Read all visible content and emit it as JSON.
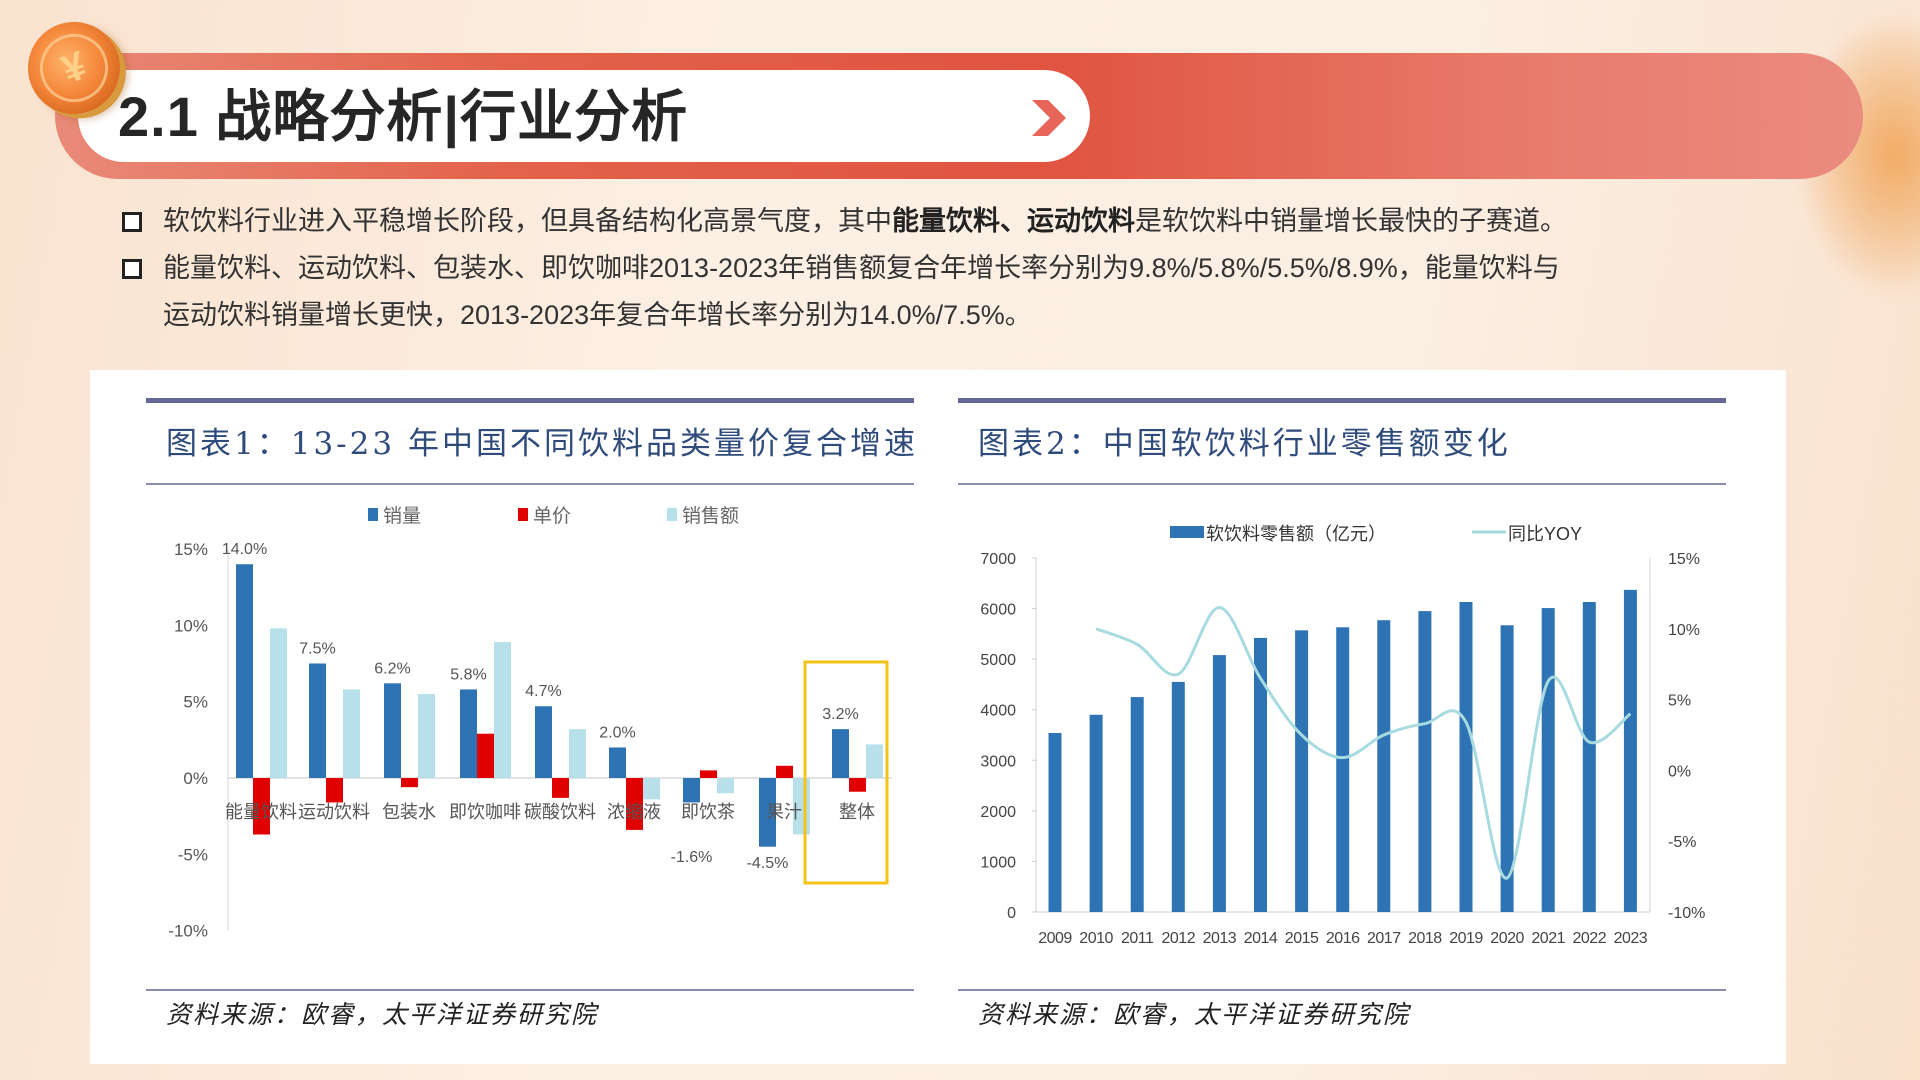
{
  "header": {
    "title": "2.1 战略分析|行业分析",
    "coin_glyph": "¥",
    "chevron": "chevron-right"
  },
  "bullets": [
    {
      "parts": [
        {
          "text": "软饮料行业进入平稳增长阶段，但具备结构化高景气度，其中",
          "bold": false
        },
        {
          "text": "能量饮料、运动饮料",
          "bold": true
        },
        {
          "text": "是软饮料中销量增长最快的子赛道。",
          "bold": false
        }
      ]
    },
    {
      "line1": "能量饮料、运动饮料、包装水、即饮咖啡2013-2023年销售额复合年增长率分别为9.8%/5.8%/5.5%/8.9%，能量饮料与",
      "line2": "运动饮料销量增长更快，2013-2023年复合年增长率分别为14.0%/7.5%。"
    }
  ],
  "charts": {
    "chart1": {
      "title": "图表1：13-23 年中国不同饮料品类量价复合增速",
      "source": "资料来源：欧睿，太平洋证券研究院"
    },
    "chart2": {
      "title": "图表2：中国软饮料行业零售额变化",
      "source": "资料来源：欧睿，太平洋证券研究院"
    }
  },
  "colors": {
    "volume": "#2e74b5",
    "price": "#e00000",
    "sales": "#b7e0ea",
    "retail_bar": "#2e74b5",
    "yoy_line": "#a8dbe0",
    "highlight_box": "#f5c21a",
    "title_blue": "#2f4b7c",
    "rule": "#646896"
  },
  "chart_data": [
    {
      "type": "bar",
      "title": "图表1：13-23 年中国不同饮料品类量价复合增速",
      "categories": [
        "能量饮料",
        "运动饮料",
        "包装水",
        "即饮咖啡",
        "碳酸饮料",
        "浓缩液",
        "即饮茶",
        "果汁",
        "整体"
      ],
      "series": [
        {
          "name": "销量",
          "values": [
            14.0,
            7.5,
            6.2,
            5.8,
            4.7,
            2.0,
            -1.6,
            -4.5,
            3.2
          ]
        },
        {
          "name": "单价",
          "values": [
            -3.7,
            -1.6,
            -0.6,
            2.9,
            -1.3,
            -3.4,
            0.5,
            0.8,
            -0.9
          ]
        },
        {
          "name": "销售额",
          "values": [
            9.8,
            5.8,
            5.5,
            8.9,
            3.2,
            -1.4,
            -1.0,
            -3.7,
            2.2
          ]
        }
      ],
      "data_labels": [
        "14.0%",
        "7.5%",
        "6.2%",
        "5.8%",
        "4.7%",
        "2.0%",
        "-1.6%",
        "-4.5%",
        "3.2%"
      ],
      "yticks": [
        "15%",
        "10%",
        "5%",
        "0%",
        "-5%",
        "-10%"
      ],
      "ylim": [
        -10,
        15
      ],
      "xlabel": "",
      "ylabel": "",
      "legend": [
        "销量",
        "单价",
        "销售额"
      ],
      "legend_position": "top",
      "annotations": [
        "整体 highlighted with yellow box"
      ],
      "grid": false
    },
    {
      "type": "bar",
      "title": "图表2：中国软饮料行业零售额变化",
      "categories": [
        "2009",
        "2010",
        "2011",
        "2012",
        "2013",
        "2014",
        "2015",
        "2016",
        "2017",
        "2018",
        "2019",
        "2020",
        "2021",
        "2022",
        "2023"
      ],
      "series": [
        {
          "name": "软饮料零售额（亿元）",
          "type": "bar",
          "axis": "left",
          "values": [
            3540,
            3900,
            4250,
            4550,
            5080,
            5420,
            5570,
            5630,
            5770,
            5950,
            6130,
            5670,
            6010,
            6130,
            6370
          ]
        },
        {
          "name": "同比YOY",
          "type": "line",
          "axis": "right",
          "values": [
            null,
            10.0,
            8.9,
            6.8,
            11.5,
            6.5,
            2.5,
            0.9,
            2.5,
            3.3,
            3.4,
            -7.6,
            6.3,
            2.0,
            4.0
          ]
        }
      ],
      "left_yticks": [
        "7000",
        "6000",
        "5000",
        "4000",
        "3000",
        "2000",
        "1000",
        "0"
      ],
      "right_yticks": [
        "15%",
        "10%",
        "5%",
        "0%",
        "-5%",
        "-10%"
      ],
      "ylim_left": [
        0,
        7000
      ],
      "ylim_right": [
        -10,
        15
      ],
      "legend": [
        "软饮料零售额（亿元）",
        "同比YOY"
      ],
      "legend_position": "top",
      "grid": false
    }
  ]
}
